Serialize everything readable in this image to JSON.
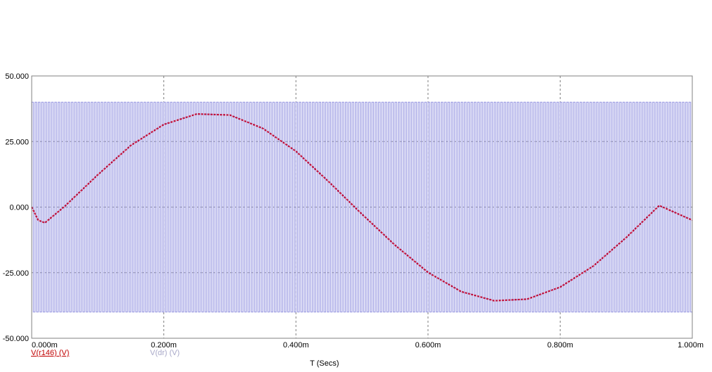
{
  "chart_data": {
    "type": "line",
    "xlabel": "T (Secs)",
    "xlim": [
      0,
      0.001
    ],
    "ylim": [
      -50,
      50
    ],
    "grid": true,
    "x_ticks": [
      {
        "value": 0.0,
        "label": "0.000m"
      },
      {
        "value": 0.0002,
        "label": "0.200m"
      },
      {
        "value": 0.0004,
        "label": "0.400m"
      },
      {
        "value": 0.0006,
        "label": "0.600m"
      },
      {
        "value": 0.0008,
        "label": "0.800m"
      },
      {
        "value": 0.001,
        "label": "1.000m"
      }
    ],
    "y_ticks": [
      {
        "value": 50,
        "label": "50.000"
      },
      {
        "value": 25,
        "label": "25.000"
      },
      {
        "value": 0,
        "label": "0.000"
      },
      {
        "value": -25,
        "label": "-25.000"
      },
      {
        "value": -50,
        "label": "-50.000"
      }
    ],
    "series": [
      {
        "name": "V(dr) (V)",
        "color": "#9d9de3",
        "kind": "square-wave",
        "amplitude": 40,
        "frequency_hz": 200000,
        "x_start": 0.0,
        "x_end": 0.001
      },
      {
        "name": "V(r146) (V)",
        "color": "#c0103a",
        "kind": "sine",
        "x": [
          0.0,
          1e-05,
          2e-05,
          5e-05,
          0.0001,
          0.00015,
          0.0002,
          0.00025,
          0.0003,
          0.00035,
          0.0004,
          0.00045,
          0.0005,
          0.00055,
          0.0006,
          0.00065,
          0.0007,
          0.00075,
          0.0008,
          0.00085,
          0.0009,
          0.00095,
          0.001
        ],
        "y": [
          0.0,
          -5.0,
          -6.0,
          0.3,
          12.3,
          23.5,
          31.5,
          35.5,
          35.1,
          30.0,
          21.3,
          9.6,
          -2.7,
          -14.5,
          -24.9,
          -32.2,
          -35.7,
          -35.1,
          -30.5,
          -22.5,
          -11.6,
          0.6,
          -5.0
        ]
      }
    ]
  },
  "legend": {
    "series_a": "V(r146) (V)",
    "series_b": "V(dr) (V)"
  }
}
